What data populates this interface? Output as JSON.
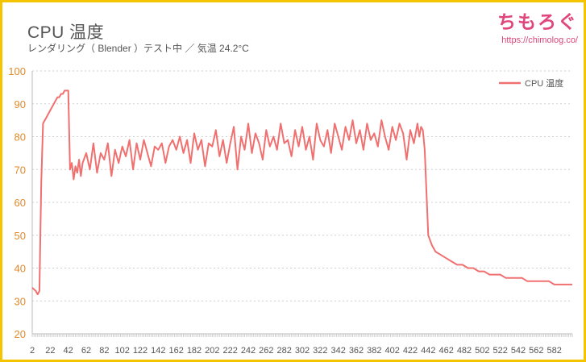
{
  "title": "CPU 温度",
  "subtitle": "レンダリング（ Blender ）テスト中 ／ 気温 24.2°C",
  "brand": {
    "name": "ちもろぐ",
    "url": "https://chimolog.co/"
  },
  "colors": {
    "line": "#f07070",
    "border": "#f5c400",
    "ytick": "#e08a2c",
    "brand": "#e0457b"
  },
  "chart_data": {
    "type": "line",
    "title": "CPU 温度",
    "subtitle": "レンダリング（ Blender ）テスト中 ／ 気温 24.2°C",
    "xlabel": "",
    "ylabel": "",
    "ylim": [
      20,
      100
    ],
    "yticks": [
      20,
      30,
      40,
      50,
      60,
      70,
      80,
      90,
      100
    ],
    "xlim": [
      2,
      602
    ],
    "xticks": [
      2,
      22,
      42,
      62,
      82,
      102,
      122,
      142,
      162,
      182,
      202,
      222,
      242,
      262,
      282,
      302,
      322,
      342,
      362,
      382,
      402,
      422,
      442,
      462,
      482,
      502,
      522,
      542,
      562,
      582
    ],
    "grid": "horizontal dotted",
    "legend": "top-right",
    "series": [
      {
        "name": "CPU 温度",
        "x": [
          2,
          6,
          8,
          10,
          12,
          14,
          16,
          18,
          20,
          22,
          24,
          26,
          28,
          30,
          32,
          34,
          36,
          38,
          40,
          42,
          43,
          44,
          46,
          48,
          50,
          52,
          54,
          56,
          58,
          62,
          66,
          70,
          74,
          78,
          82,
          86,
          90,
          94,
          98,
          102,
          106,
          110,
          114,
          118,
          122,
          126,
          130,
          134,
          138,
          142,
          146,
          150,
          154,
          158,
          162,
          166,
          170,
          174,
          178,
          182,
          186,
          190,
          194,
          198,
          202,
          206,
          210,
          214,
          218,
          222,
          226,
          230,
          234,
          238,
          242,
          246,
          250,
          254,
          258,
          262,
          266,
          270,
          274,
          278,
          282,
          286,
          290,
          294,
          298,
          302,
          306,
          310,
          314,
          318,
          322,
          326,
          330,
          334,
          338,
          342,
          346,
          350,
          354,
          358,
          362,
          366,
          370,
          374,
          378,
          382,
          386,
          390,
          394,
          398,
          402,
          406,
          410,
          414,
          418,
          422,
          426,
          430,
          432,
          434,
          436,
          438,
          442,
          446,
          450,
          456,
          462,
          468,
          474,
          480,
          486,
          492,
          498,
          504,
          510,
          516,
          522,
          528,
          534,
          540,
          546,
          552,
          558,
          564,
          570,
          576,
          582,
          588,
          594,
          600,
          602
        ],
        "values": [
          34,
          33,
          32,
          33,
          66,
          84,
          85,
          86,
          87,
          88,
          89,
          90,
          91,
          92,
          92,
          93,
          93,
          94,
          94,
          94,
          82,
          70,
          72,
          67,
          71,
          69,
          73,
          68,
          72,
          75,
          70,
          78,
          69,
          75,
          73,
          78,
          68,
          76,
          72,
          77,
          74,
          79,
          70,
          78,
          73,
          79,
          75,
          71,
          77,
          76,
          78,
          72,
          77,
          79,
          76,
          80,
          75,
          79,
          72,
          81,
          76,
          79,
          71,
          78,
          77,
          82,
          74,
          79,
          72,
          78,
          83,
          70,
          80,
          76,
          84,
          75,
          81,
          78,
          73,
          82,
          77,
          80,
          76,
          84,
          78,
          79,
          74,
          82,
          77,
          83,
          76,
          80,
          73,
          84,
          79,
          77,
          82,
          75,
          84,
          80,
          76,
          83,
          79,
          85,
          78,
          82,
          76,
          84,
          79,
          81,
          77,
          85,
          80,
          76,
          83,
          79,
          84,
          81,
          73,
          82,
          78,
          84,
          80,
          83,
          82,
          76,
          50,
          47,
          45,
          44,
          43,
          42,
          41,
          41,
          40,
          40,
          39,
          39,
          38,
          38,
          38,
          37,
          37,
          37,
          37,
          36,
          36,
          36,
          36,
          36,
          35,
          35,
          35,
          35,
          35
        ]
      }
    ]
  }
}
